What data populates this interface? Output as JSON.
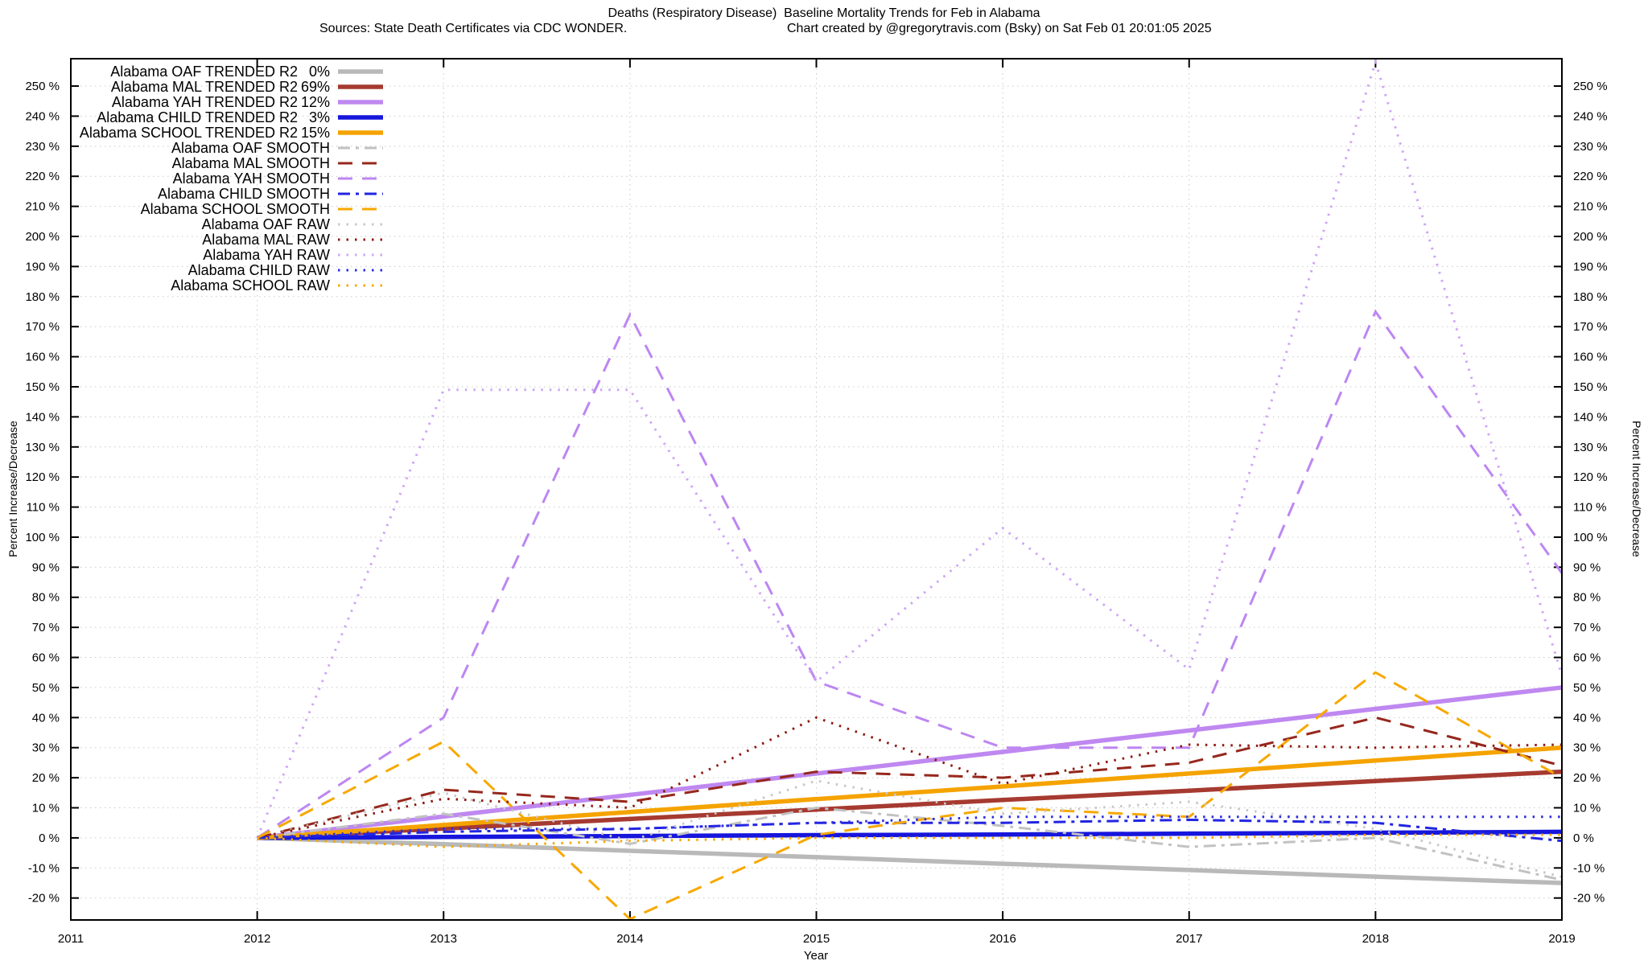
{
  "title": {
    "line1": "Deaths (Respiratory Disease)  Baseline Mortality Trends for Feb in Alabama",
    "line2_left": "Sources: State Death Certificates via CDC WONDER.",
    "line2_right": "Chart created by @gregorytravis.com (Bsky) on Sat Feb 01 20:01:05 2025"
  },
  "axes": {
    "xlabel": "Year",
    "ylabel_left": "Percent Increase/Decrease",
    "ylabel_right": "Percent Increase/Decrease",
    "x_ticks": [
      2011,
      2012,
      2013,
      2014,
      2015,
      2016,
      2017,
      2018,
      2019
    ],
    "y_tick_values": [
      -20,
      -10,
      0,
      10,
      20,
      30,
      40,
      50,
      60,
      70,
      80,
      90,
      100,
      110,
      120,
      130,
      140,
      150,
      160,
      170,
      180,
      190,
      200,
      210,
      220,
      230,
      240,
      250
    ],
    "y_tick_suffix": " %"
  },
  "legend": {
    "items": [
      {
        "label": "Alabama OAF TRENDED R2",
        "r2": "0%"
      },
      {
        "label": "Alabama MAL TRENDED R2",
        "r2": "69%"
      },
      {
        "label": "Alabama YAH TRENDED R2",
        "r2": "12%"
      },
      {
        "label": "Alabama CHILD TRENDED R2",
        "r2": "3%"
      },
      {
        "label": "Alabama SCHOOL TRENDED R2",
        "r2": "15%"
      },
      {
        "label": "Alabama OAF SMOOTH"
      },
      {
        "label": "Alabama MAL SMOOTH"
      },
      {
        "label": "Alabama YAH SMOOTH"
      },
      {
        "label": "Alabama CHILD SMOOTH"
      },
      {
        "label": "Alabama SCHOOL SMOOTH"
      },
      {
        "label": "Alabama OAF RAW"
      },
      {
        "label": "Alabama MAL RAW"
      },
      {
        "label": "Alabama YAH RAW"
      },
      {
        "label": "Alabama CHILD RAW"
      },
      {
        "label": "Alabama SCHOOL RAW"
      }
    ]
  },
  "chart_data": {
    "type": "line",
    "x": [
      2012,
      2013,
      2014,
      2015,
      2016,
      2017,
      2018,
      2019
    ],
    "xlim": [
      2011,
      2019
    ],
    "ylim": [
      -27.3,
      259.1
    ],
    "grid": true,
    "legend_position": "top-left",
    "background": "#ffffff",
    "grid_color": "#c9c9c9",
    "series": [
      {
        "name": "Alabama OAF TRENDED",
        "role": "trended",
        "color": "#b9b9b9",
        "line": "solid",
        "width": 5.5,
        "values": [
          0,
          -2.1,
          -4.3,
          -6.4,
          -8.6,
          -10.7,
          -12.9,
          -15
        ]
      },
      {
        "name": "Alabama MAL TRENDED",
        "role": "trended",
        "color": "#a63a30",
        "line": "solid",
        "width": 5.5,
        "values": [
          0,
          3.1,
          6.3,
          9.4,
          12.6,
          15.7,
          18.9,
          22
        ]
      },
      {
        "name": "Alabama YAH TRENDED",
        "role": "trended",
        "color": "#bf88f0",
        "line": "solid",
        "width": 5.5,
        "values": [
          0,
          7.1,
          14.3,
          21.4,
          28.6,
          35.7,
          42.9,
          50
        ]
      },
      {
        "name": "Alabama CHILD TRENDED",
        "role": "trended",
        "color": "#1616dc",
        "line": "solid",
        "width": 5.5,
        "values": [
          0,
          0.3,
          0.6,
          0.9,
          1.1,
          1.4,
          1.7,
          2
        ]
      },
      {
        "name": "Alabama SCHOOL TRENDED",
        "role": "trended",
        "color": "#f5a300",
        "line": "solid",
        "width": 5.5,
        "values": [
          0,
          4.3,
          8.6,
          12.9,
          17.1,
          21.4,
          25.7,
          30
        ]
      },
      {
        "name": "Alabama OAF SMOOTH",
        "role": "smooth",
        "color": "#c2c2c2",
        "line": "dashdot",
        "width": 3,
        "values": [
          0,
          8,
          -2,
          10,
          4,
          -3,
          0,
          -14
        ]
      },
      {
        "name": "Alabama MAL SMOOTH",
        "role": "smooth",
        "color": "#96271d",
        "line": "dash",
        "width": 3,
        "values": [
          0,
          16,
          12,
          22,
          20,
          25,
          40,
          24
        ]
      },
      {
        "name": "Alabama YAH SMOOTH",
        "role": "smooth",
        "color": "#bd86f2",
        "line": "dash",
        "width": 3,
        "values": [
          0,
          40,
          174,
          52,
          30,
          30,
          175,
          88
        ]
      },
      {
        "name": "Alabama CHILD SMOOTH",
        "role": "smooth",
        "color": "#2124e2",
        "line": "dashdot",
        "width": 3,
        "values": [
          0,
          2,
          3,
          5,
          5,
          6,
          5,
          -1
        ]
      },
      {
        "name": "Alabama SCHOOL SMOOTH",
        "role": "smooth",
        "color": "#f7a800",
        "line": "dash",
        "width": 3,
        "values": [
          0,
          32,
          -27,
          1,
          10,
          7,
          55,
          20
        ]
      },
      {
        "name": "Alabama OAF RAW",
        "role": "raw",
        "color": "#c8c8c8",
        "line": "dot",
        "width": 3,
        "values": [
          0,
          15,
          -1,
          19,
          8,
          12,
          3,
          -13
        ]
      },
      {
        "name": "Alabama MAL RAW",
        "role": "raw",
        "color": "#8d1a0f",
        "line": "dot",
        "width": 3,
        "values": [
          0,
          13,
          10,
          40,
          18,
          31,
          30,
          31
        ]
      },
      {
        "name": "Alabama YAH RAW",
        "role": "raw",
        "color": "#cda6f6",
        "line": "dot",
        "width": 3,
        "values": [
          0,
          149,
          149,
          52,
          103,
          56,
          258,
          54
        ]
      },
      {
        "name": "Alabama CHILD RAW",
        "role": "raw",
        "color": "#2c2ce6",
        "line": "dot",
        "width": 3,
        "values": [
          0,
          3,
          3,
          5,
          7,
          7,
          7,
          7
        ]
      },
      {
        "name": "Alabama SCHOOL RAW",
        "role": "raw",
        "color": "#f5a800",
        "line": "dot",
        "width": 3,
        "values": [
          0,
          -3,
          -1,
          0,
          0,
          0,
          1,
          1
        ]
      }
    ]
  }
}
